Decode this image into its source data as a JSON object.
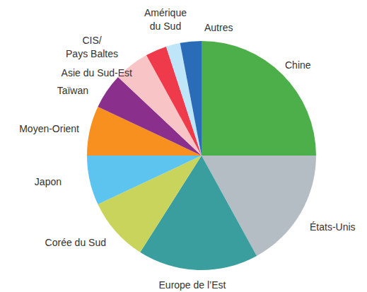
{
  "chart_data": {
    "type": "pie",
    "categories": [
      "Chine",
      "États-Unis",
      "Europe de l’Est",
      "Corée du Sud",
      "Japon",
      "Moyen-Orient",
      "Taïwan",
      "Asie du Sud-Est",
      "CIS/ Pays Baltes",
      "Amérique du Sud",
      "Autres"
    ],
    "values": [
      25,
      17,
      17,
      9,
      7,
      7,
      5,
      5,
      3,
      2,
      3
    ],
    "colors": [
      "#4daf4a",
      "#b4bcc4",
      "#3a9e9e",
      "#c8d45c",
      "#5cc4ee",
      "#f7901e",
      "#8b2f8c",
      "#f9c4c6",
      "#ef3a4c",
      "#bfe5f8",
      "#2b6cb8"
    ]
  }
}
